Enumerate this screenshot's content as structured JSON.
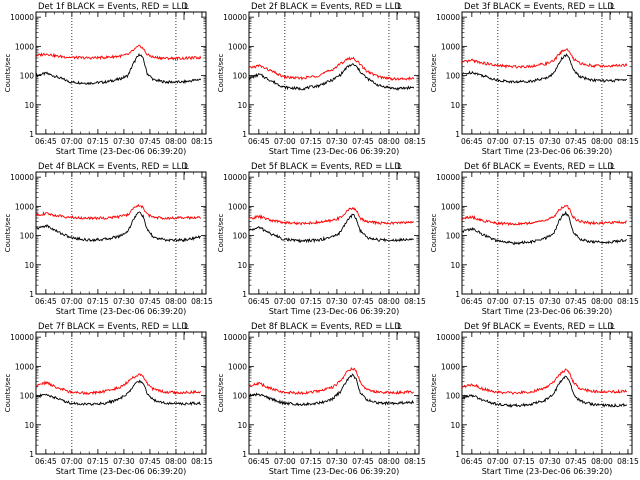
{
  "common": {
    "ylabel": "Counts/sec",
    "xlabel": "Start Time (23-Dec-06 06:39:20)",
    "title_suffix": " BLACK = Events, RED = LLD",
    "corner_mark": "L",
    "y_ticks": [
      "1",
      "10",
      "100",
      "1000",
      "10000"
    ],
    "x_ticks": [
      "06:45",
      "07:00",
      "07:15",
      "07:30",
      "07:45",
      "08:00",
      "08:15"
    ],
    "colors": {
      "events": "#000000",
      "lld": "#ff0000"
    }
  },
  "chart_data": [
    {
      "type": "line",
      "title": "Det 1f BLACK = Events, RED = LLD",
      "x_unit": "minutes since 06:39:20",
      "xlim": [
        0,
        98
      ],
      "ylim": [
        1,
        15000
      ],
      "y_scale": "log",
      "vlines": [
        "07:00",
        "08:00"
      ],
      "series": [
        {
          "name": "Events",
          "color": "#000000",
          "x": [
            0,
            6,
            12,
            20,
            30,
            40,
            48,
            53,
            56,
            58,
            60,
            62,
            64,
            68,
            75,
            85,
            95
          ],
          "y": [
            100,
            120,
            90,
            60,
            55,
            60,
            75,
            100,
            250,
            400,
            550,
            350,
            120,
            70,
            60,
            60,
            75
          ]
        },
        {
          "name": "LLD",
          "color": "#ff0000",
          "x": [
            0,
            6,
            12,
            20,
            30,
            40,
            48,
            53,
            56,
            58,
            60,
            62,
            64,
            68,
            75,
            85,
            95
          ],
          "y": [
            480,
            560,
            460,
            420,
            400,
            420,
            460,
            520,
            720,
            900,
            1050,
            800,
            520,
            420,
            390,
            390,
            410
          ]
        }
      ]
    },
    {
      "type": "line",
      "title": "Det 2f BLACK = Events, RED = LLD",
      "x_unit": "minutes since 06:39:20",
      "xlim": [
        0,
        98
      ],
      "ylim": [
        1,
        15000
      ],
      "y_scale": "log",
      "vlines": [
        "07:00",
        "08:00"
      ],
      "series": [
        {
          "name": "Events",
          "color": "#000000",
          "x": [
            0,
            6,
            12,
            20,
            30,
            40,
            48,
            53,
            56,
            58,
            60,
            62,
            64,
            68,
            75,
            85,
            95
          ],
          "y": [
            80,
            110,
            70,
            40,
            35,
            45,
            70,
            110,
            180,
            220,
            240,
            200,
            140,
            80,
            45,
            35,
            40
          ]
        },
        {
          "name": "LLD",
          "color": "#ff0000",
          "x": [
            0,
            6,
            12,
            20,
            30,
            40,
            48,
            53,
            56,
            58,
            60,
            62,
            64,
            68,
            75,
            85,
            95
          ],
          "y": [
            180,
            220,
            150,
            90,
            80,
            100,
            160,
            260,
            350,
            380,
            390,
            330,
            240,
            140,
            90,
            75,
            80
          ]
        }
      ]
    },
    {
      "type": "line",
      "title": "Det 3f BLACK = Events, RED = LLD",
      "x_unit": "minutes since 06:39:20",
      "xlim": [
        0,
        98
      ],
      "ylim": [
        1,
        15000
      ],
      "y_scale": "log",
      "vlines": [
        "07:00",
        "08:00"
      ],
      "series": [
        {
          "name": "Events",
          "color": "#000000",
          "x": [
            0,
            6,
            12,
            20,
            30,
            40,
            48,
            53,
            56,
            58,
            60,
            62,
            64,
            68,
            75,
            85,
            95
          ],
          "y": [
            110,
            130,
            100,
            70,
            60,
            65,
            80,
            120,
            280,
            420,
            500,
            380,
            160,
            90,
            70,
            65,
            75
          ]
        },
        {
          "name": "LLD",
          "color": "#ff0000",
          "x": [
            0,
            6,
            12,
            20,
            30,
            40,
            48,
            53,
            56,
            58,
            60,
            62,
            64,
            68,
            75,
            85,
            95
          ],
          "y": [
            280,
            330,
            270,
            220,
            200,
            210,
            250,
            320,
            550,
            700,
            800,
            650,
            380,
            260,
            220,
            210,
            230
          ]
        }
      ]
    },
    {
      "type": "line",
      "title": "Det 4f BLACK = Events, RED = LLD",
      "x_unit": "minutes since 06:39:20",
      "xlim": [
        0,
        98
      ],
      "ylim": [
        1,
        15000
      ],
      "y_scale": "log",
      "vlines": [
        "07:00",
        "08:00"
      ],
      "series": [
        {
          "name": "Events",
          "color": "#000000",
          "x": [
            0,
            6,
            12,
            20,
            30,
            40,
            48,
            53,
            56,
            58,
            60,
            62,
            64,
            68,
            75,
            85,
            95
          ],
          "y": [
            170,
            220,
            140,
            85,
            70,
            75,
            95,
            140,
            350,
            520,
            650,
            420,
            160,
            85,
            70,
            70,
            90
          ]
        },
        {
          "name": "LLD",
          "color": "#ff0000",
          "x": [
            0,
            6,
            12,
            20,
            30,
            40,
            48,
            53,
            56,
            58,
            60,
            62,
            64,
            68,
            75,
            85,
            95
          ],
          "y": [
            520,
            560,
            480,
            420,
            390,
            400,
            440,
            520,
            820,
            1000,
            1100,
            850,
            520,
            420,
            400,
            400,
            420
          ]
        }
      ]
    },
    {
      "type": "line",
      "title": "Det 5f BLACK = Events, RED = LLD",
      "x_unit": "minutes since 06:39:20",
      "xlim": [
        0,
        98
      ],
      "ylim": [
        1,
        15000
      ],
      "y_scale": "log",
      "vlines": [
        "07:00",
        "08:00"
      ],
      "series": [
        {
          "name": "Events",
          "color": "#000000",
          "x": [
            0,
            6,
            12,
            20,
            30,
            40,
            48,
            53,
            56,
            58,
            60,
            62,
            64,
            68,
            75,
            85,
            95
          ],
          "y": [
            150,
            190,
            120,
            75,
            65,
            70,
            90,
            130,
            300,
            420,
            520,
            360,
            150,
            85,
            70,
            70,
            80
          ]
        },
        {
          "name": "LLD",
          "color": "#ff0000",
          "x": [
            0,
            6,
            12,
            20,
            30,
            40,
            48,
            53,
            56,
            58,
            60,
            62,
            64,
            68,
            75,
            85,
            95
          ],
          "y": [
            380,
            450,
            340,
            280,
            260,
            280,
            330,
            420,
            650,
            800,
            900,
            700,
            400,
            300,
            270,
            270,
            290
          ]
        }
      ]
    },
    {
      "type": "line",
      "title": "Det 6f BLACK = Events, RED = LLD",
      "x_unit": "minutes since 06:39:20",
      "xlim": [
        0,
        98
      ],
      "ylim": [
        1,
        15000
      ],
      "y_scale": "log",
      "vlines": [
        "07:00",
        "08:00"
      ],
      "series": [
        {
          "name": "Events",
          "color": "#000000",
          "x": [
            0,
            6,
            12,
            20,
            30,
            40,
            48,
            53,
            56,
            58,
            60,
            62,
            64,
            68,
            75,
            85,
            95
          ],
          "y": [
            140,
            170,
            110,
            65,
            55,
            60,
            80,
            120,
            320,
            480,
            600,
            380,
            140,
            75,
            60,
            60,
            70
          ]
        },
        {
          "name": "LLD",
          "color": "#ff0000",
          "x": [
            0,
            6,
            12,
            20,
            30,
            40,
            48,
            53,
            56,
            58,
            60,
            62,
            64,
            68,
            75,
            85,
            95
          ],
          "y": [
            380,
            430,
            320,
            260,
            250,
            270,
            330,
            430,
            750,
            950,
            1100,
            820,
            420,
            300,
            270,
            270,
            290
          ]
        }
      ]
    },
    {
      "type": "line",
      "title": "Det 7f BLACK = Events, RED = LLD",
      "x_unit": "minutes since 06:39:20",
      "xlim": [
        0,
        98
      ],
      "ylim": [
        1,
        15000
      ],
      "y_scale": "log",
      "vlines": [
        "07:00",
        "08:00"
      ],
      "series": [
        {
          "name": "Events",
          "color": "#000000",
          "x": [
            0,
            6,
            12,
            20,
            30,
            40,
            48,
            53,
            56,
            58,
            60,
            62,
            64,
            68,
            75,
            85,
            95
          ],
          "y": [
            90,
            110,
            80,
            55,
            50,
            55,
            75,
            120,
            200,
            280,
            320,
            250,
            120,
            70,
            55,
            52,
            55
          ]
        },
        {
          "name": "LLD",
          "color": "#ff0000",
          "x": [
            0,
            6,
            12,
            20,
            30,
            40,
            48,
            53,
            56,
            58,
            60,
            62,
            64,
            68,
            75,
            85,
            95
          ],
          "y": [
            220,
            280,
            190,
            130,
            120,
            140,
            190,
            300,
            420,
            500,
            550,
            450,
            260,
            160,
            130,
            125,
            135
          ]
        }
      ]
    },
    {
      "type": "line",
      "title": "Det 8f BLACK = Events, RED = LLD",
      "x_unit": "minutes since 06:39:20",
      "xlim": [
        0,
        98
      ],
      "ylim": [
        1,
        15000
      ],
      "y_scale": "log",
      "vlines": [
        "07:00",
        "08:00"
      ],
      "series": [
        {
          "name": "Events",
          "color": "#000000",
          "x": [
            0,
            6,
            12,
            20,
            30,
            40,
            48,
            53,
            56,
            58,
            60,
            62,
            64,
            68,
            75,
            85,
            95
          ],
          "y": [
            100,
            110,
            80,
            55,
            50,
            55,
            75,
            140,
            300,
            420,
            500,
            350,
            130,
            70,
            55,
            55,
            60
          ]
        },
        {
          "name": "LLD",
          "color": "#ff0000",
          "x": [
            0,
            6,
            12,
            20,
            30,
            40,
            48,
            53,
            56,
            58,
            60,
            62,
            64,
            68,
            75,
            85,
            95
          ],
          "y": [
            220,
            260,
            180,
            130,
            120,
            140,
            190,
            320,
            600,
            750,
            850,
            650,
            300,
            160,
            130,
            125,
            135
          ]
        }
      ]
    },
    {
      "type": "line",
      "title": "Det 9f BLACK = Events, RED = LLD",
      "x_unit": "minutes since 06:39:20",
      "xlim": [
        0,
        98
      ],
      "ylim": [
        1,
        15000
      ],
      "y_scale": "log",
      "vlines": [
        "07:00",
        "08:00"
      ],
      "series": [
        {
          "name": "Events",
          "color": "#000000",
          "x": [
            0,
            6,
            12,
            20,
            30,
            40,
            48,
            53,
            56,
            58,
            60,
            62,
            64,
            68,
            75,
            85,
            95
          ],
          "y": [
            85,
            100,
            70,
            50,
            45,
            50,
            70,
            120,
            260,
            380,
            450,
            320,
            120,
            65,
            50,
            45,
            48
          ]
        },
        {
          "name": "LLD",
          "color": "#ff0000",
          "x": [
            0,
            6,
            12,
            20,
            30,
            40,
            48,
            53,
            56,
            58,
            60,
            62,
            64,
            68,
            75,
            85,
            95
          ],
          "y": [
            200,
            240,
            170,
            130,
            120,
            135,
            180,
            290,
            520,
            650,
            750,
            600,
            300,
            170,
            140,
            135,
            140
          ]
        }
      ]
    }
  ]
}
